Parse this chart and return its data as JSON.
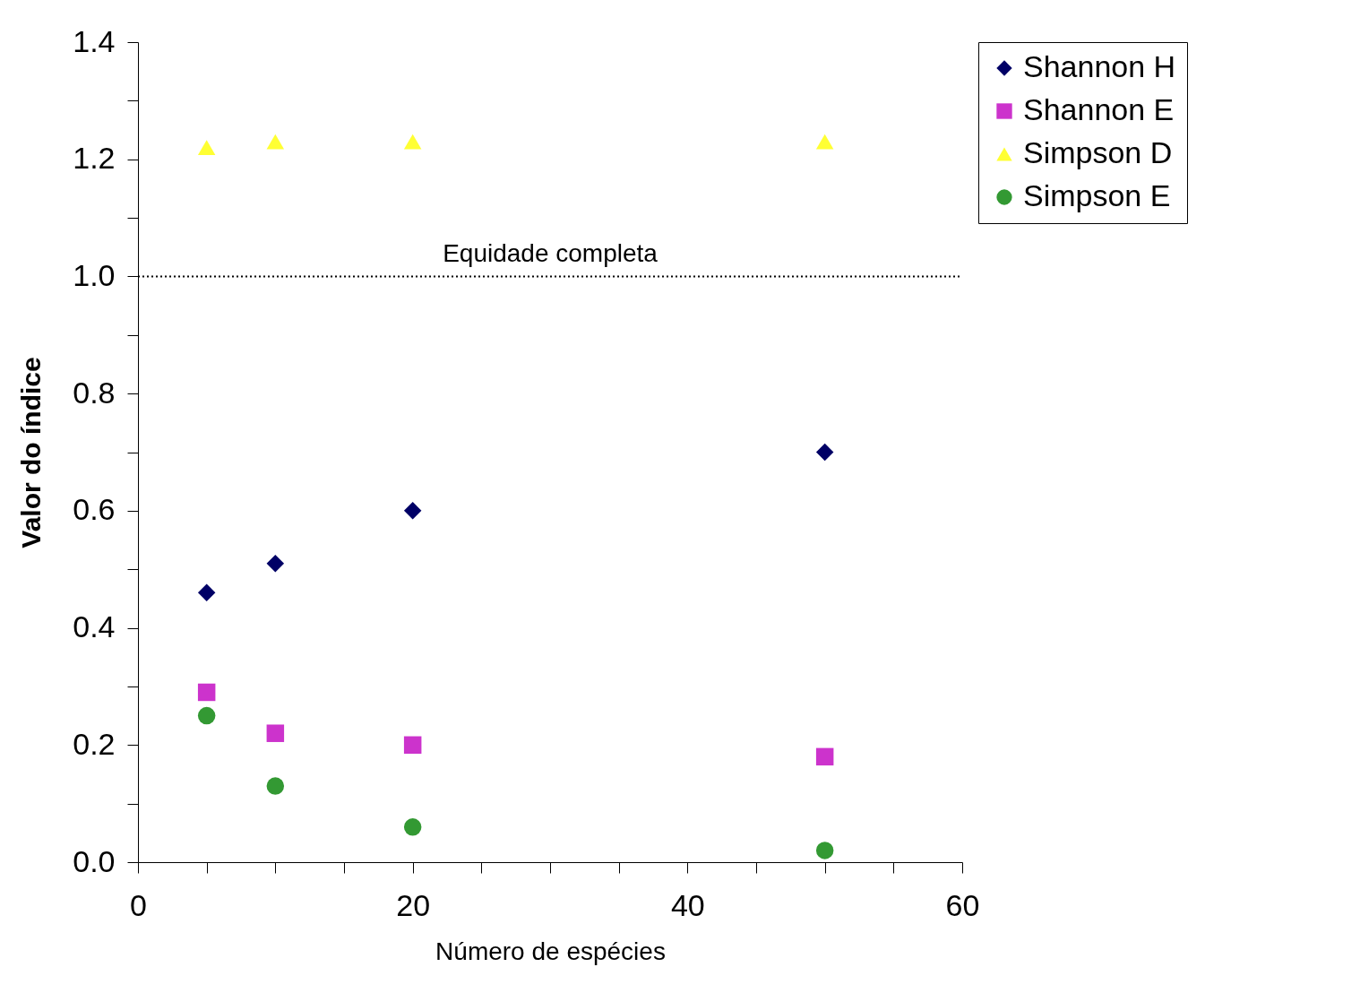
{
  "chart_data": {
    "type": "scatter",
    "xlabel": "Número de espécies",
    "ylabel": "Valor do índice",
    "x": [
      5,
      10,
      20,
      50
    ],
    "series": [
      {
        "name": "Shannon H",
        "color": "#000066",
        "marker": "diamond",
        "values": [
          0.46,
          0.51,
          0.6,
          0.7
        ]
      },
      {
        "name": "Shannon E",
        "color": "#cc33cc",
        "marker": "square",
        "values": [
          0.29,
          0.22,
          0.2,
          0.18
        ]
      },
      {
        "name": "Simpson D",
        "color": "#ffff33",
        "marker": "triangle",
        "values": [
          1.22,
          1.23,
          1.23,
          1.23
        ]
      },
      {
        "name": "Simpson E",
        "color": "#339933",
        "marker": "circle",
        "values": [
          0.25,
          0.13,
          0.06,
          0.02
        ]
      }
    ],
    "xlim": [
      0,
      60
    ],
    "xticks": [
      0,
      {
        "value": 5,
        "label": null
      },
      {
        "value": 10,
        "label": null
      },
      {
        "value": 15,
        "label": null
      },
      20,
      {
        "value": 25,
        "label": null
      },
      {
        "value": 30,
        "label": null
      },
      {
        "value": 35,
        "label": null
      },
      40,
      {
        "value": 45,
        "label": null
      },
      {
        "value": 50,
        "label": null
      },
      {
        "value": 55,
        "label": null
      },
      60
    ],
    "ylim": [
      0,
      1.4
    ],
    "yticks": [
      {
        "value": 0,
        "label": "0.0"
      },
      {
        "value": 0.1,
        "label": null
      },
      {
        "value": 0.2,
        "label": "0.2"
      },
      {
        "value": 0.3,
        "label": null
      },
      {
        "value": 0.4,
        "label": "0.4"
      },
      {
        "value": 0.5,
        "label": null
      },
      {
        "value": 0.6,
        "label": "0.6"
      },
      {
        "value": 0.7,
        "label": null
      },
      {
        "value": 0.8,
        "label": "0.8"
      },
      {
        "value": 0.9,
        "label": null
      },
      {
        "value": 1,
        "label": "1.0"
      },
      {
        "value": 1.1,
        "label": null
      },
      {
        "value": 1.2,
        "label": "1.2"
      },
      {
        "value": 1.3,
        "label": null
      },
      {
        "value": 1.4,
        "label": "1.4"
      }
    ],
    "ref_lines": [
      {
        "axis": "y",
        "value": 1,
        "label": "Equidade completa",
        "line_style": "dotted",
        "color": "#000000"
      }
    ],
    "grid": false,
    "legend": "right"
  }
}
